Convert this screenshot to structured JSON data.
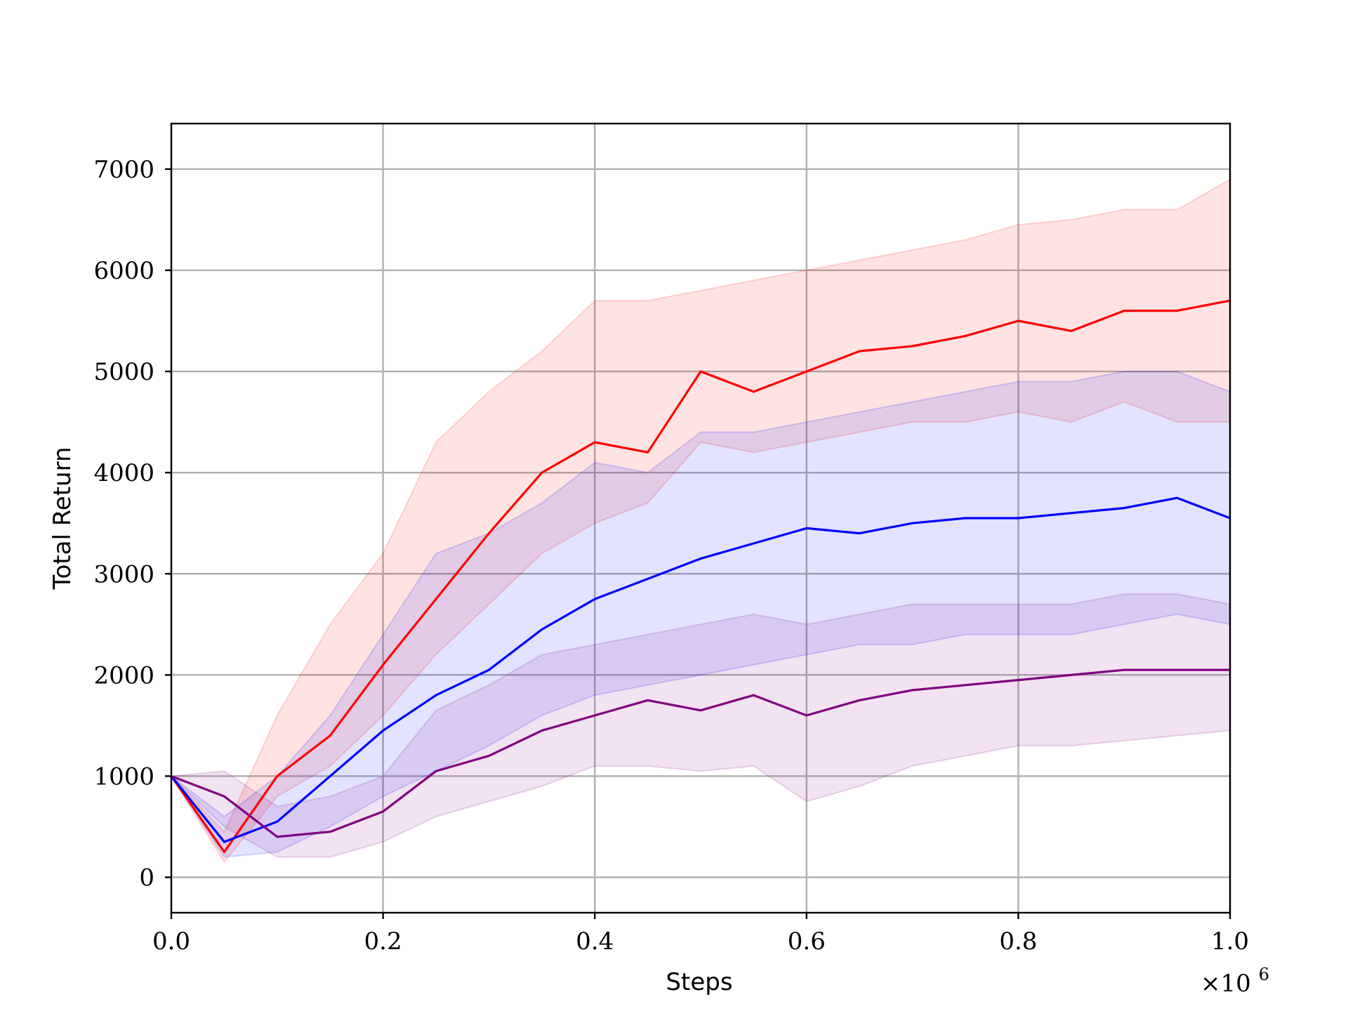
{
  "chart_data": {
    "type": "line",
    "xlabel": "Steps",
    "ylabel": "Total Return",
    "x_scale_label": "×10",
    "x_scale_exponent": "6",
    "xlim": [
      0.0,
      1.0
    ],
    "ylim": [
      -350,
      7450
    ],
    "grid": true,
    "xticks": [
      0.0,
      0.2,
      0.4,
      0.6,
      0.8,
      1.0
    ],
    "xtick_labels": [
      "0.0",
      "0.2",
      "0.4",
      "0.6",
      "0.8",
      "1.0"
    ],
    "yticks": [
      0,
      1000,
      2000,
      3000,
      4000,
      5000,
      6000,
      7000
    ],
    "ytick_labels": [
      "0",
      "1000",
      "2000",
      "3000",
      "4000",
      "5000",
      "6000",
      "7000"
    ],
    "x": [
      0.0,
      0.05,
      0.1,
      0.15,
      0.2,
      0.25,
      0.3,
      0.35,
      0.4,
      0.45,
      0.5,
      0.55,
      0.6,
      0.65,
      0.7,
      0.75,
      0.8,
      0.85,
      0.9,
      0.95,
      1.0
    ],
    "series": [
      {
        "color": "#ff0000",
        "band_color": "#ff0000",
        "mean": [
          1000,
          250,
          1000,
          1400,
          2100,
          2750,
          3400,
          4000,
          4300,
          4200,
          5000,
          4800,
          5000,
          5200,
          5250,
          5350,
          5500,
          5400,
          5600,
          5600,
          5700
        ],
        "upper": [
          1000,
          450,
          1600,
          2500,
          3200,
          4300,
          4800,
          5200,
          5700,
          5700,
          5800,
          5900,
          6000,
          6100,
          6200,
          6300,
          6450,
          6500,
          6600,
          6600,
          6900
        ],
        "lower": [
          1000,
          150,
          800,
          1100,
          1600,
          2200,
          2700,
          3200,
          3500,
          3700,
          4300,
          4200,
          4300,
          4400,
          4500,
          4500,
          4600,
          4500,
          4700,
          4500,
          4500
        ]
      },
      {
        "color": "#0000ff",
        "band_color": "#0000ff",
        "mean": [
          1000,
          350,
          550,
          1000,
          1450,
          1800,
          2050,
          2450,
          2750,
          2950,
          3150,
          3300,
          3450,
          3400,
          3500,
          3550,
          3550,
          3600,
          3650,
          3750,
          3550
        ],
        "upper": [
          1000,
          600,
          1000,
          1600,
          2400,
          3200,
          3400,
          3700,
          4100,
          4000,
          4400,
          4400,
          4500,
          4600,
          4700,
          4800,
          4900,
          4900,
          5000,
          5000,
          4800
        ],
        "lower": [
          1000,
          200,
          250,
          500,
          800,
          1050,
          1300,
          1600,
          1800,
          1900,
          2000,
          2100,
          2200,
          2300,
          2300,
          2400,
          2400,
          2400,
          2500,
          2600,
          2500
        ]
      },
      {
        "color": "#800080",
        "band_color": "#800080",
        "mean": [
          1000,
          800,
          400,
          450,
          650,
          1050,
          1200,
          1450,
          1600,
          1750,
          1650,
          1800,
          1600,
          1750,
          1850,
          1900,
          1950,
          2000,
          2050,
          2050,
          2050
        ],
        "upper": [
          1000,
          1050,
          700,
          800,
          1000,
          1650,
          1900,
          2200,
          2300,
          2400,
          2500,
          2600,
          2500,
          2600,
          2700,
          2700,
          2700,
          2700,
          2800,
          2800,
          2700
        ],
        "lower": [
          1000,
          500,
          200,
          200,
          350,
          600,
          750,
          900,
          1100,
          1100,
          1050,
          1100,
          750,
          900,
          1100,
          1200,
          1300,
          1300,
          1350,
          1400,
          1450
        ]
      }
    ]
  }
}
